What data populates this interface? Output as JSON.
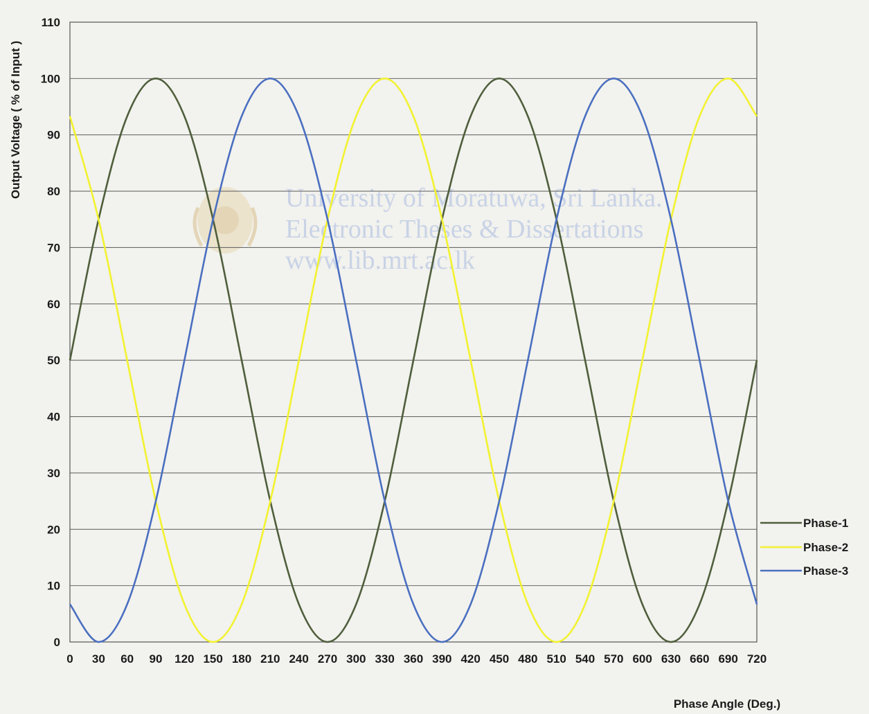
{
  "chart_data": {
    "type": "line",
    "title": "",
    "xlabel": "Phase Angle (Deg.)",
    "ylabel": "Output Voltage ( % of Input )",
    "xlim": [
      0,
      720
    ],
    "ylim": [
      0,
      110
    ],
    "x_ticks": [
      0,
      30,
      60,
      90,
      120,
      150,
      180,
      210,
      240,
      270,
      300,
      330,
      360,
      390,
      420,
      450,
      480,
      510,
      540,
      570,
      600,
      630,
      660,
      690,
      720
    ],
    "x_tick_labels": [
      "0",
      "30",
      "60",
      "90",
      "120",
      "150",
      "180",
      "210",
      "240",
      "270",
      "300",
      "330",
      "360",
      "390",
      "420",
      "450",
      "480",
      "510",
      "540",
      "570",
      "600",
      "630",
      "660",
      "690",
      "720"
    ],
    "y_ticks": [
      0,
      10,
      20,
      30,
      40,
      50,
      60,
      70,
      80,
      90,
      100,
      110
    ],
    "y_tick_labels": [
      "0",
      "10",
      "20",
      "30",
      "40",
      "50",
      "60",
      "70",
      "80",
      "90",
      "100",
      "110"
    ],
    "grid": "horizontal",
    "legend_position": "right",
    "x": [
      0,
      30,
      60,
      90,
      120,
      150,
      180,
      210,
      240,
      270,
      300,
      330,
      360,
      390,
      420,
      450,
      480,
      510,
      540,
      570,
      600,
      630,
      660,
      690,
      720
    ],
    "series": [
      {
        "name": "Phase-1",
        "color": "#4f5e3c",
        "values": [
          50,
          75,
          93.3,
          100,
          93.3,
          75,
          50,
          25,
          6.7,
          0,
          6.7,
          25,
          50,
          75,
          93.3,
          100,
          93.3,
          75,
          50,
          25,
          6.7,
          0,
          6.7,
          25,
          50
        ]
      },
      {
        "name": "Phase-2",
        "color": "#f2f230",
        "values": [
          93.3,
          75,
          50,
          25,
          6.7,
          0,
          6.7,
          25,
          50,
          75,
          93.3,
          100,
          93.3,
          75,
          50,
          25,
          6.7,
          0,
          6.7,
          25,
          50,
          75,
          93.3,
          100,
          93.3
        ]
      },
      {
        "name": "Phase-3",
        "color": "#4a6fc0",
        "values": [
          6.7,
          0,
          6.7,
          25,
          50,
          75,
          93.3,
          100,
          93.3,
          75,
          50,
          25,
          6.7,
          0,
          6.7,
          25,
          50,
          75,
          93.3,
          100,
          93.3,
          75,
          50,
          25,
          6.7
        ]
      }
    ]
  },
  "watermark": {
    "lines": [
      "University of Moratuwa, Sri Lanka.",
      "Electronic Theses & Dissertations",
      "www.lib.mrt.ac.lk"
    ]
  }
}
